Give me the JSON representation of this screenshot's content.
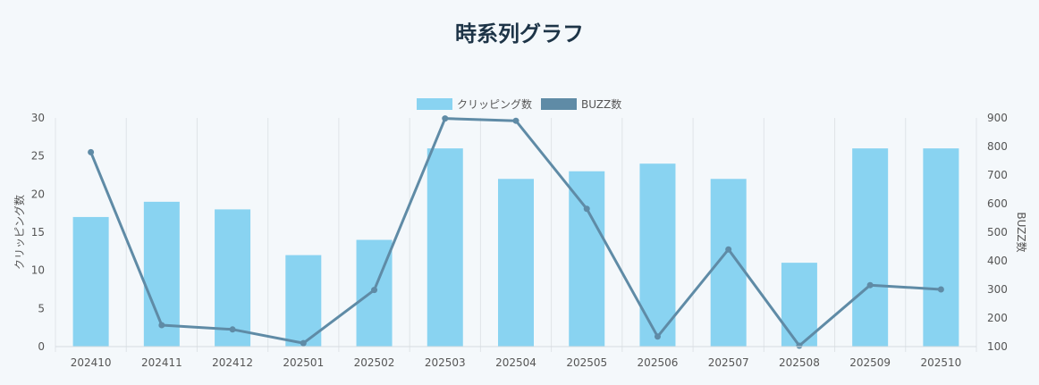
{
  "page": {
    "title": "時系列グラフ"
  },
  "chart_data": {
    "type": "bar",
    "categories": [
      "202410",
      "202411",
      "202412",
      "202501",
      "202502",
      "202503",
      "202504",
      "202505",
      "202506",
      "202507",
      "202508",
      "202509",
      "202510"
    ],
    "series": [
      {
        "name": "クリッピング数",
        "type": "bar",
        "axis": "left",
        "color": "#89d3f1",
        "values": [
          17,
          19,
          18,
          12,
          14,
          26,
          22,
          23,
          24,
          22,
          11,
          26,
          26
        ]
      },
      {
        "name": "BUZZ数",
        "type": "line",
        "axis": "right",
        "color": "#5f8ba6",
        "values": [
          780,
          175,
          160,
          112,
          298,
          898,
          890,
          582,
          135,
          440,
          103,
          315,
          300
        ]
      }
    ],
    "ylabel": "クリッピング数",
    "y2label": "BUZZ数",
    "ylim": [
      0,
      30
    ],
    "yticks": [
      0,
      5,
      10,
      15,
      20,
      25,
      30
    ],
    "y2lim": [
      100,
      900
    ],
    "y2ticks": [
      100,
      200,
      300,
      400,
      500,
      600,
      700,
      800,
      900
    ],
    "grid": "vertical",
    "legend_position": "top-center"
  }
}
